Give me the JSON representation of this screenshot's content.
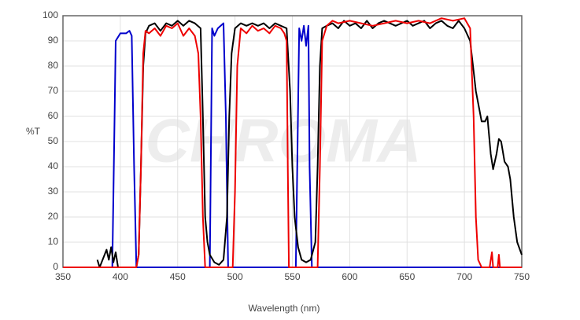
{
  "chart_data": {
    "type": "line",
    "xlabel": "Wavelength (nm)",
    "ylabel": "%T",
    "watermark": "CHROMA",
    "xlim": [
      350,
      750
    ],
    "xticks": [
      350,
      400,
      450,
      500,
      550,
      600,
      650,
      700,
      750
    ],
    "ylim": [
      0,
      100
    ],
    "yticks": [
      0,
      10,
      20,
      30,
      40,
      50,
      60,
      70,
      80,
      90,
      100
    ],
    "grid": true,
    "series": [
      {
        "color": "#0000cc",
        "x": [
          350,
          393,
          395,
          396,
          400,
          405,
          408,
          410,
          412,
          414,
          478,
          480,
          482,
          485,
          490,
          492,
          494,
          553,
          556,
          558,
          560,
          562,
          564,
          565,
          567,
          750
        ],
        "values": [
          0,
          0,
          60,
          90,
          93,
          93,
          94,
          92,
          40,
          0,
          0,
          95,
          92,
          95,
          97,
          60,
          0,
          0,
          95,
          90,
          96,
          88,
          96,
          40,
          0,
          0
        ]
      },
      {
        "color": "#000000",
        "x": [
          380,
          382,
          388,
          390,
          392,
          394,
          396,
          398,
          400,
          414,
          416,
          418,
          420,
          422,
          425,
          430,
          435,
          440,
          445,
          450,
          455,
          460,
          465,
          470,
          472,
          474,
          476,
          478,
          482,
          486,
          490,
          493,
          495,
          497,
          500,
          505,
          510,
          515,
          520,
          525,
          530,
          535,
          540,
          545,
          548,
          550,
          552,
          555,
          558,
          562,
          566,
          570,
          572,
          574,
          576,
          580,
          585,
          590,
          595,
          600,
          605,
          610,
          615,
          620,
          625,
          630,
          635,
          640,
          645,
          650,
          655,
          660,
          665,
          670,
          675,
          680,
          685,
          690,
          695,
          700,
          705,
          710,
          715,
          718,
          720,
          723,
          725,
          728,
          730,
          732,
          735,
          738,
          740,
          743,
          746,
          750
        ],
        "values": [
          3,
          0,
          7,
          3,
          8,
          2,
          6,
          0,
          0,
          0,
          5,
          40,
          80,
          93,
          96,
          97,
          94,
          97,
          96,
          98,
          96,
          98,
          97,
          95,
          60,
          20,
          10,
          5,
          2,
          1,
          3,
          20,
          60,
          85,
          95,
          97,
          96,
          97,
          96,
          97,
          95,
          97,
          96,
          95,
          70,
          40,
          20,
          8,
          3,
          2,
          3,
          10,
          40,
          80,
          95,
          96,
          97,
          95,
          98,
          96,
          97,
          95,
          98,
          95,
          97,
          98,
          97,
          96,
          97,
          98,
          96,
          97,
          98,
          95,
          97,
          98,
          96,
          95,
          98,
          95,
          90,
          70,
          58,
          58,
          60,
          45,
          39,
          45,
          51,
          50,
          42,
          40,
          35,
          20,
          10,
          5
        ]
      },
      {
        "color": "#ee0000",
        "x": [
          350,
          414,
          416,
          418,
          420,
          422,
          425,
          430,
          435,
          440,
          445,
          450,
          455,
          460,
          465,
          468,
          470,
          472,
          474,
          498,
          500,
          502,
          505,
          510,
          515,
          520,
          525,
          530,
          535,
          540,
          543,
          545,
          546,
          547,
          572,
          574,
          576,
          580,
          585,
          590,
          600,
          610,
          620,
          630,
          640,
          650,
          660,
          670,
          680,
          690,
          700,
          705,
          708,
          710,
          712,
          715,
          722,
          724,
          725,
          729,
          730,
          731,
          750
        ],
        "values": [
          0,
          0,
          5,
          40,
          85,
          94,
          93,
          95,
          92,
          96,
          95,
          97,
          92,
          95,
          92,
          85,
          60,
          20,
          0,
          0,
          30,
          80,
          95,
          93,
          96,
          94,
          95,
          93,
          96,
          95,
          93,
          90,
          40,
          0,
          0,
          40,
          90,
          96,
          98,
          97,
          98,
          97,
          96,
          97,
          98,
          97,
          98,
          97,
          99,
          98,
          99,
          95,
          60,
          20,
          3,
          0,
          0,
          6,
          0,
          0,
          5,
          0,
          0
        ]
      }
    ]
  }
}
